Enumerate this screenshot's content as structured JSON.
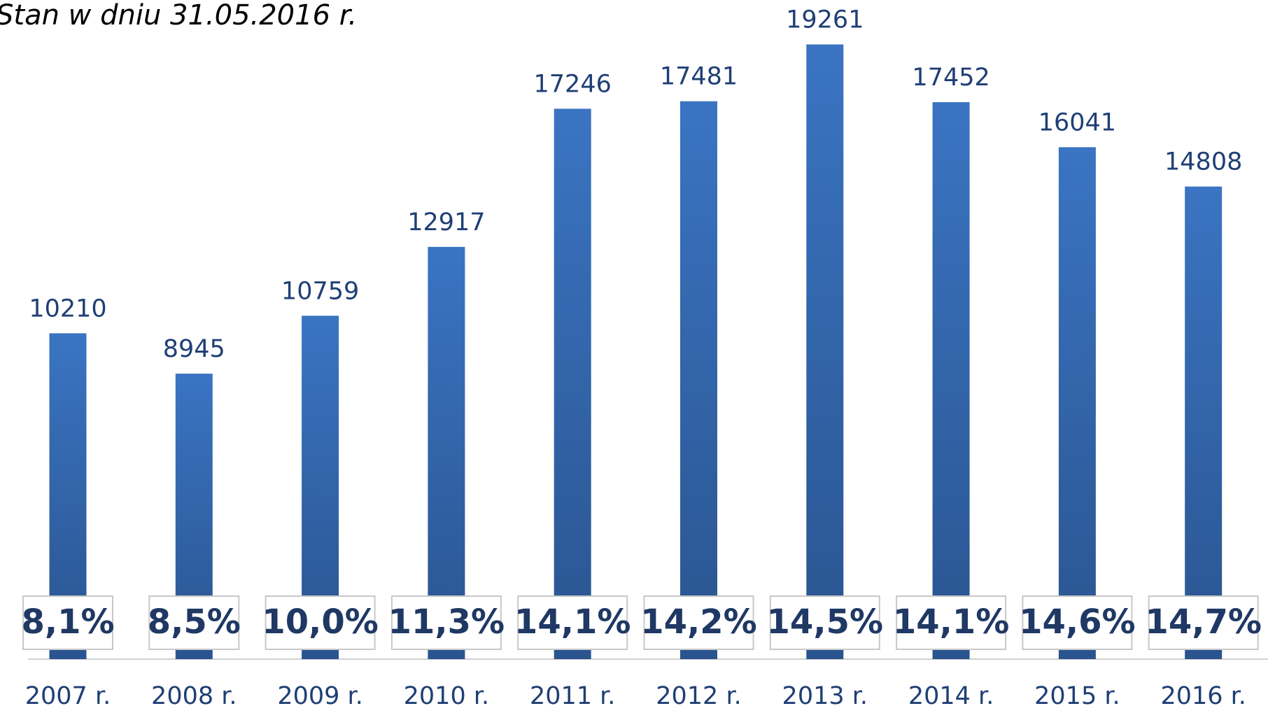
{
  "chart_data": {
    "type": "bar",
    "title": "Stan w dniu 31.05.2016 r.",
    "categories": [
      "2007 r.",
      "2008 r.",
      "2009 r.",
      "2010 r.",
      "2011 r.",
      "2012 r.",
      "2013 r.",
      "2014 r.",
      "2015 r.",
      "2016 r."
    ],
    "values": [
      10210,
      8945,
      10759,
      12917,
      17246,
      17481,
      19261,
      17452,
      16041,
      14808
    ],
    "color": "#3370bd",
    "ylim": [
      0,
      20500
    ],
    "grid": false,
    "shares": {
      "values": [
        8.1,
        8.5,
        10.0,
        11.3,
        14.1,
        14.2,
        14.5,
        14.1,
        14.6,
        14.7
      ],
      "value_labels": [
        "8,1%",
        "8,5%",
        "10,0%",
        "11,3%",
        "14,1%",
        "14,2%",
        "14,5%",
        "14,1%",
        "14,6%",
        "14,7%"
      ]
    }
  }
}
